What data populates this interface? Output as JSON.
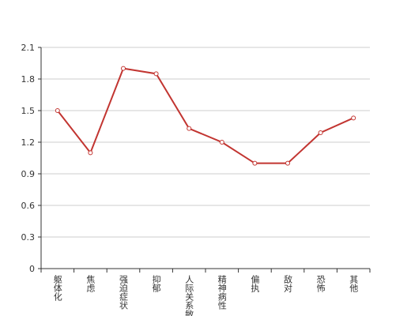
{
  "chart_data": {
    "type": "line",
    "categories": [
      "躯体化",
      "焦虑",
      "强迫症状",
      "抑郁",
      "人际关系敏感",
      "精神病性",
      "偏执",
      "敌对",
      "恐怖",
      "其他"
    ],
    "series": [
      {
        "color": "#c23531",
        "values": [
          1.5,
          1.1,
          1.9,
          1.85,
          1.33,
          1.2,
          1.0,
          1.0,
          1.29,
          1.43
        ]
      }
    ],
    "ylim": [
      0,
      2.1
    ],
    "yticks": [
      0,
      0.3,
      0.6,
      0.9,
      1.2,
      1.5,
      1.8,
      2.1
    ],
    "grid": true
  }
}
